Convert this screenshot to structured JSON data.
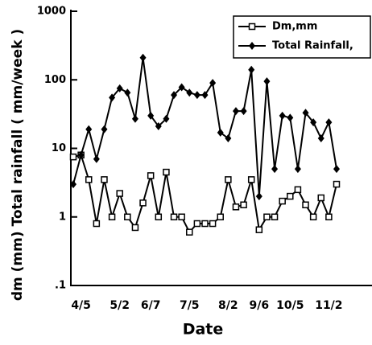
{
  "chart_data": {
    "type": "line",
    "x_label": "Date",
    "y_label": "dm (mm)  Total rainfall ( mm/week )",
    "categories": [
      null,
      "4/5",
      null,
      null,
      null,
      null,
      "5/2",
      null,
      null,
      null,
      "6/7",
      null,
      null,
      null,
      null,
      "7/5",
      null,
      null,
      null,
      null,
      "8/2",
      null,
      null,
      null,
      "9/6",
      null,
      null,
      null,
      "10/5",
      null,
      null,
      null,
      null,
      "11/2",
      null
    ],
    "series": [
      {
        "name": "Dm,mm",
        "color": "#000000",
        "marker": "square",
        "values": [
          7.5,
          8,
          3.5,
          0.8,
          3.5,
          1,
          2.2,
          1,
          0.7,
          1.6,
          4,
          1,
          4.5,
          1,
          1,
          0.6,
          0.8,
          0.8,
          0.8,
          1,
          3.5,
          1.4,
          1.5,
          3.5,
          0.65,
          1,
          1,
          1.7,
          2,
          2.5,
          1.5,
          1,
          1.9,
          1,
          3
        ]
      },
      {
        "name": "Total Rainfall,",
        "color": "#000000",
        "marker": "diamond",
        "values": [
          3,
          8,
          19,
          7,
          19,
          55,
          75,
          65,
          27,
          210,
          30,
          21,
          27,
          60,
          78,
          65,
          60,
          60,
          90,
          17,
          14,
          35,
          35,
          140,
          2,
          95,
          5,
          30,
          28,
          5,
          33,
          24,
          14,
          24,
          5
        ]
      }
    ],
    "log_y": true,
    "ylim": [
      0.1,
      1000
    ],
    "yticks": [
      {
        "value": 0.1,
        "label": ".1"
      },
      1,
      10,
      100,
      1000
    ],
    "grid": false,
    "legend": "upper-right"
  }
}
